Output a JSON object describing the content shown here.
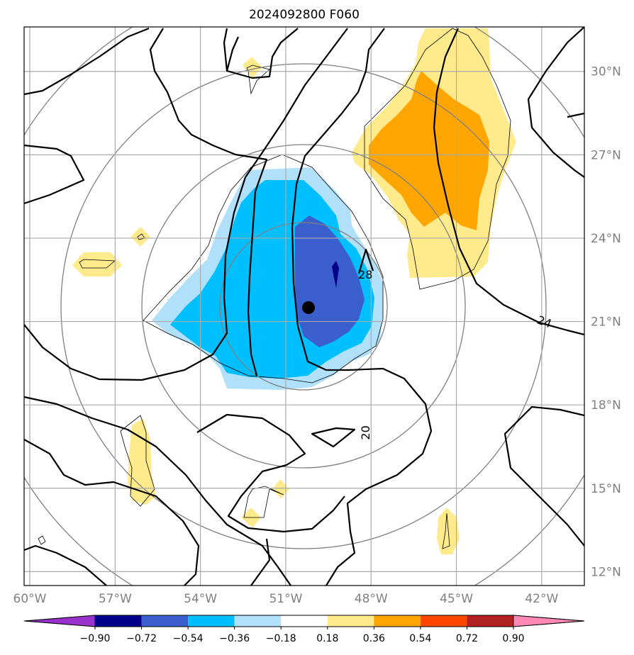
{
  "chart_data": {
    "type": "contour-map",
    "title": "2024092800 F060",
    "lon_range": [
      -60.2,
      -40.5
    ],
    "lat_range": [
      11.5,
      31.6
    ],
    "lon_ticks": [
      {
        "value": -60,
        "label": "60°W"
      },
      {
        "value": -57,
        "label": "57°W"
      },
      {
        "value": -54,
        "label": "54°W"
      },
      {
        "value": -51,
        "label": "51°W"
      },
      {
        "value": -48,
        "label": "48°W"
      },
      {
        "value": -45,
        "label": "45°W"
      },
      {
        "value": -42,
        "label": "42°W"
      }
    ],
    "lat_ticks": [
      {
        "value": 12,
        "label": "12°N"
      },
      {
        "value": 15,
        "label": "15°N"
      },
      {
        "value": 18,
        "label": "18°N"
      },
      {
        "value": 21,
        "label": "21°N"
      },
      {
        "value": 24,
        "label": "24°N"
      },
      {
        "value": 27,
        "label": "27°N"
      },
      {
        "value": 30,
        "label": "30°N"
      }
    ],
    "grid": true,
    "center_marker": {
      "lon": -50.2,
      "lat": 21.5
    },
    "range_rings_deg": [
      3,
      6,
      9,
      12
    ],
    "contour_labels": [
      {
        "text": "28",
        "lon": -48.2,
        "lat": 22.7
      },
      {
        "text": "24",
        "lon": -41.9,
        "lat": 21.0
      },
      {
        "text": "20",
        "lon": -48.2,
        "lat": 17.0
      }
    ],
    "colorbar": {
      "levels": [
        -0.9,
        -0.72,
        -0.54,
        -0.36,
        -0.18,
        0.18,
        0.36,
        0.54,
        0.72,
        0.9
      ],
      "tick_labels": [
        "−0.90",
        "−0.72",
        "−0.54",
        "−0.36",
        "−0.18",
        "0.18",
        "0.36",
        "0.54",
        "0.72",
        "0.90"
      ],
      "colors": [
        "#9932cc",
        "#00008b",
        "#3a5fcd",
        "#00bfff",
        "#b0e0fa",
        "#ffffff",
        "#ffeb8c",
        "#ffa500",
        "#ff4500",
        "#b22222",
        "#ff89b4"
      ],
      "extend": "both"
    }
  }
}
